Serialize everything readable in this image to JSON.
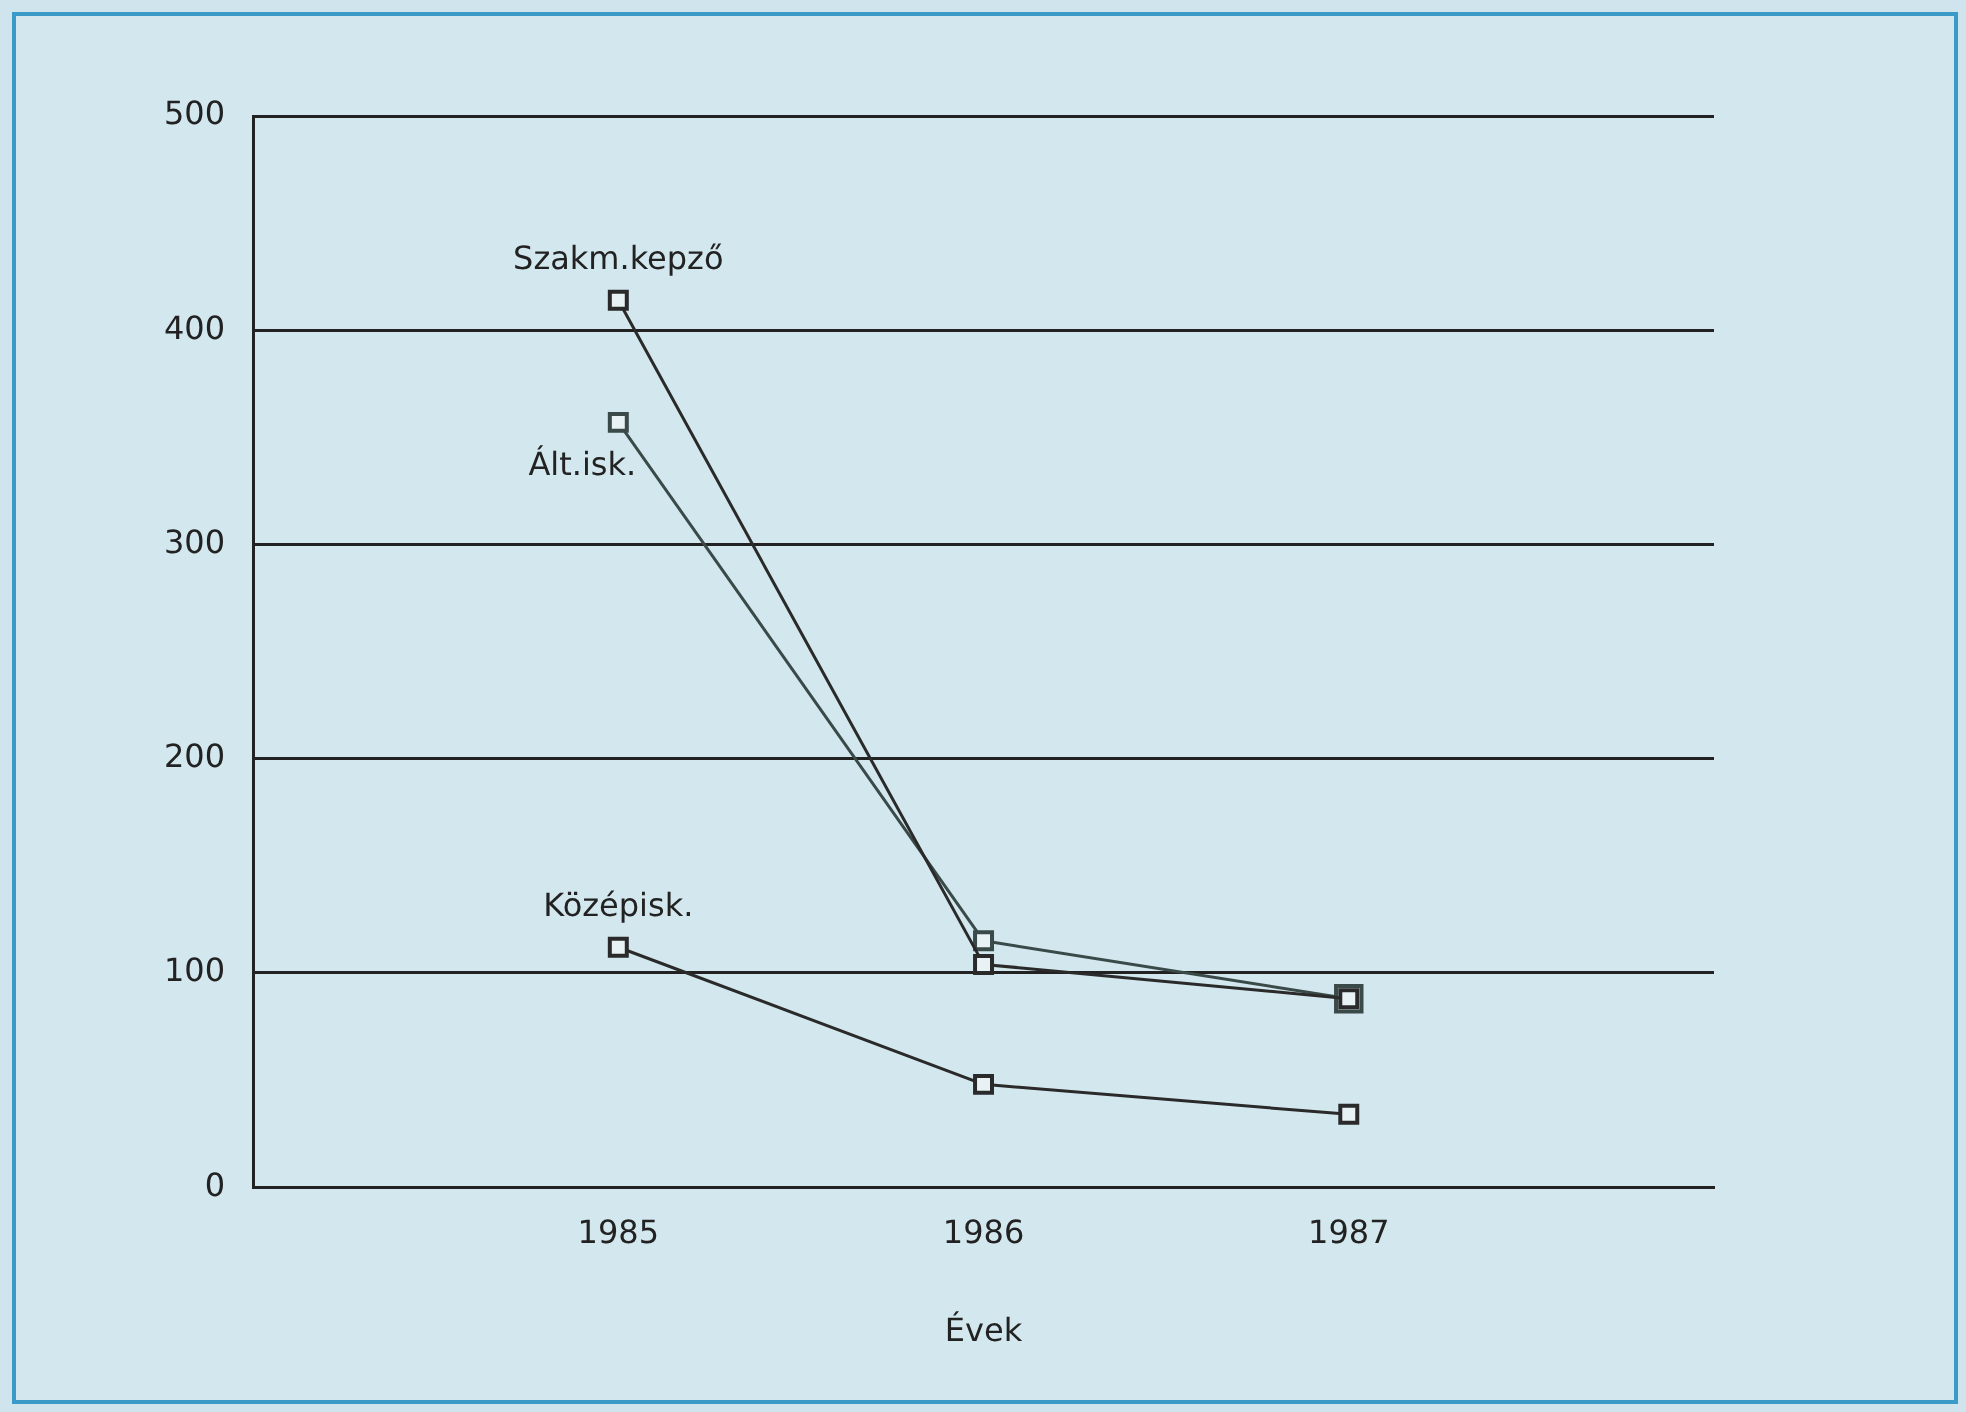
{
  "chart_data": {
    "type": "line",
    "xlabel": "Évek",
    "x": [
      1985,
      1986,
      1987
    ],
    "xlim": [
      1984,
      1988
    ],
    "xticks": [
      1985,
      1986,
      1987
    ],
    "ylim": [
      0,
      500
    ],
    "yticks": [
      0,
      100,
      200,
      300,
      400,
      500
    ],
    "grid": "y",
    "legend": false,
    "marker": "square",
    "series": [
      {
        "name": "Szakm.kepző",
        "color": "#2a2a2a",
        "values": [
          414,
          104,
          88
        ]
      },
      {
        "name": "Ált.isk.",
        "color": "#3a4a48",
        "values": [
          357,
          115,
          88
        ]
      },
      {
        "name": "Középisk.",
        "color": "#2a2a2a",
        "values": [
          112,
          48,
          34
        ]
      }
    ]
  }
}
